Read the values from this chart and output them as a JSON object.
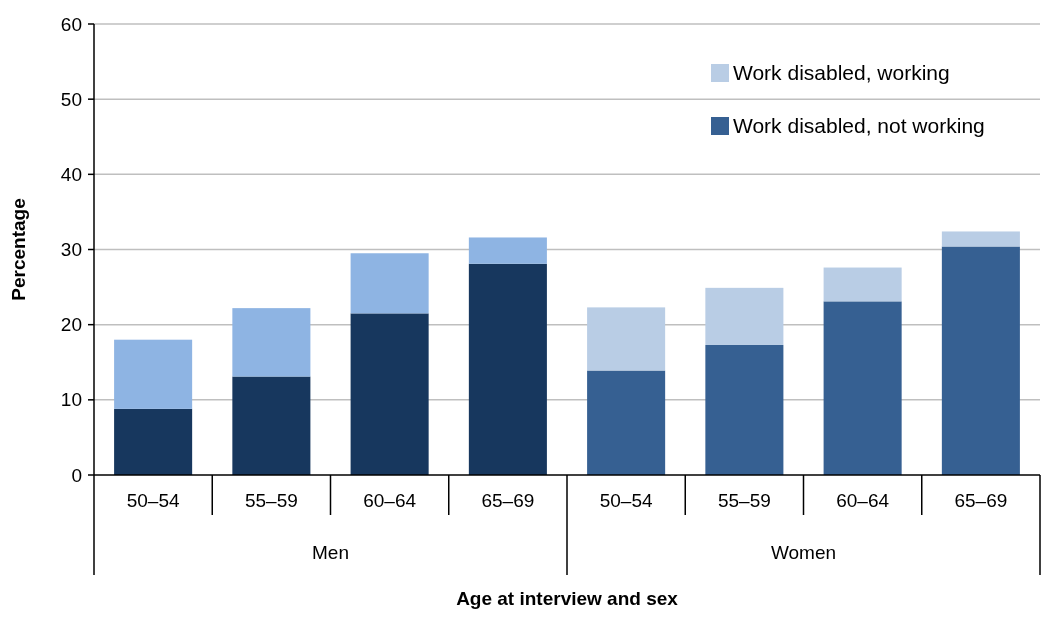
{
  "chart_data": {
    "type": "bar",
    "stacked": true,
    "xlabel": "Age at interview and sex",
    "ylabel": "Percentage",
    "categories": [
      "50–54",
      "55–59",
      "60–64",
      "65–69",
      "50–54",
      "55–59",
      "60–64",
      "65–69"
    ],
    "annotations": [
      "Men",
      "Women"
    ],
    "series": [
      {
        "name": "Work disabled, not working",
        "color": "#366092",
        "colors": [
          "#17375e",
          "#17375e",
          "#17375e",
          "#17375e",
          "#366092",
          "#366092",
          "#366092",
          "#366092"
        ],
        "values": [
          8.8,
          13.1,
          21.5,
          28.1,
          13.9,
          17.3,
          23.1,
          30.4
        ]
      },
      {
        "name": "Work disabled, working",
        "color": "#b9cde5",
        "colors": [
          "#8eb4e3",
          "#8eb4e3",
          "#8eb4e3",
          "#8eb4e3",
          "#b9cde5",
          "#b9cde5",
          "#b9cde5",
          "#b9cde5"
        ],
        "values": [
          9.2,
          9.1,
          8.0,
          3.5,
          8.4,
          7.6,
          4.5,
          2.0
        ]
      }
    ],
    "ylim": [
      0,
      60
    ],
    "yticks": [
      0,
      10,
      20,
      30,
      40,
      50,
      60
    ],
    "grid": "y",
    "legend": "top right"
  }
}
